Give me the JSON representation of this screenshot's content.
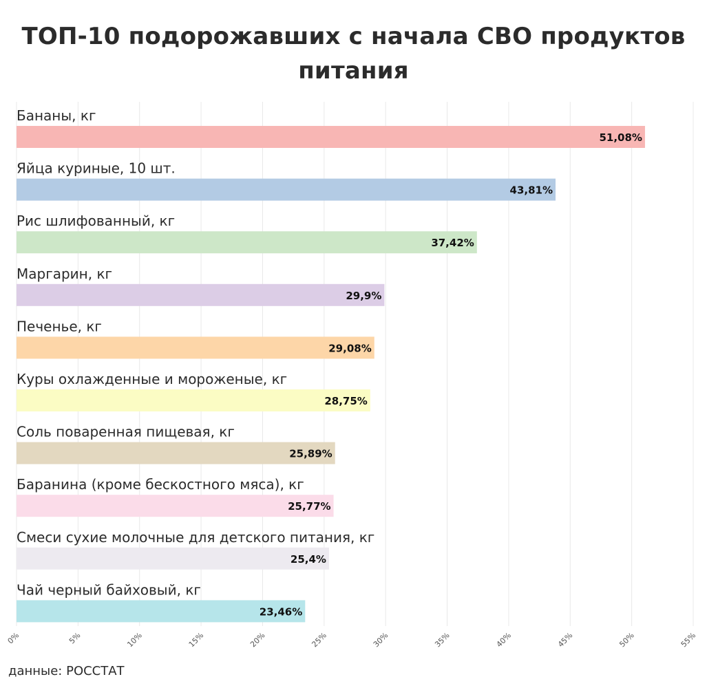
{
  "chart_data": {
    "type": "bar",
    "orientation": "horizontal",
    "title": "ТОП-10 подорожавших с начала СВО продуктов питания",
    "categories": [
      "Бананы, кг",
      "Яйца куриные, 10 шт.",
      "Рис шлифованный, кг",
      "Маргарин, кг",
      "Печенье, кг",
      "Куры охлажденные и мороженые, кг",
      "Соль поваренная пищевая, кг",
      "Баранина (кроме бескостного мяса), кг",
      "Смеси сухие молочные для детского питания, кг",
      "Чай черный байховый, кг"
    ],
    "values": [
      51.08,
      43.81,
      37.42,
      29.9,
      29.08,
      28.75,
      25.89,
      25.77,
      25.4,
      23.46
    ],
    "value_labels": [
      "51,08%",
      "43,81%",
      "37,42%",
      "29,9%",
      "29,08%",
      "28,75%",
      "25,89%",
      "25,77%",
      "25,4%",
      "23,46%"
    ],
    "colors": [
      "#f8b6b4",
      "#b3cbe4",
      "#cde7c8",
      "#dccde6",
      "#fdd6a8",
      "#fbfcc4",
      "#e3d8c0",
      "#fbdce9",
      "#edeaf0",
      "#b6e5ea"
    ],
    "xlim": [
      0,
      55
    ],
    "xticks": [
      0,
      5,
      10,
      15,
      20,
      25,
      30,
      35,
      40,
      45,
      50,
      55
    ],
    "xtick_labels": [
      "0%",
      "5%",
      "10%",
      "15%",
      "20%",
      "25%",
      "30%",
      "35%",
      "40%",
      "45%",
      "50%",
      "55%"
    ],
    "grid": true,
    "grid_color": "#e8e8e8",
    "source": "данные: РОССТАТ"
  }
}
